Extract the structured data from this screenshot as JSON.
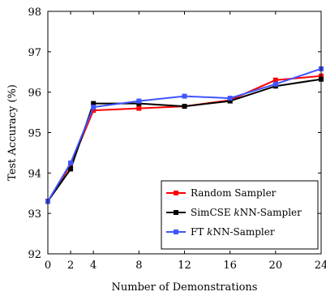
{
  "chart_data": {
    "type": "line",
    "xlabel": "Number of Demonstrations",
    "ylabel": "Test Accuracy (%)",
    "x": [
      0,
      2,
      4,
      8,
      12,
      16,
      20,
      24
    ],
    "xticks": [
      0,
      2,
      4,
      8,
      12,
      16,
      20,
      24
    ],
    "yticks": [
      92,
      93,
      94,
      95,
      96,
      97,
      98
    ],
    "xlim": [
      0,
      24
    ],
    "ylim": [
      92,
      98
    ],
    "grid": false,
    "legend_position": "bottom-right",
    "series": [
      {
        "name": "Random Sampler",
        "color": "#ff0000",
        "marker": "square",
        "values": [
          93.3,
          94.2,
          95.55,
          95.6,
          95.65,
          95.8,
          96.3,
          96.4
        ]
      },
      {
        "name": "SimCSE kNN-Sampler",
        "color": "#000000",
        "marker": "square",
        "values": [
          93.3,
          94.1,
          95.72,
          95.72,
          95.65,
          95.78,
          96.15,
          96.32
        ]
      },
      {
        "name": "FT kNN-Sampler",
        "color": "#3f55ff",
        "marker": "square",
        "values": [
          93.3,
          94.25,
          95.63,
          95.78,
          95.9,
          95.85,
          96.2,
          96.58
        ]
      }
    ]
  }
}
